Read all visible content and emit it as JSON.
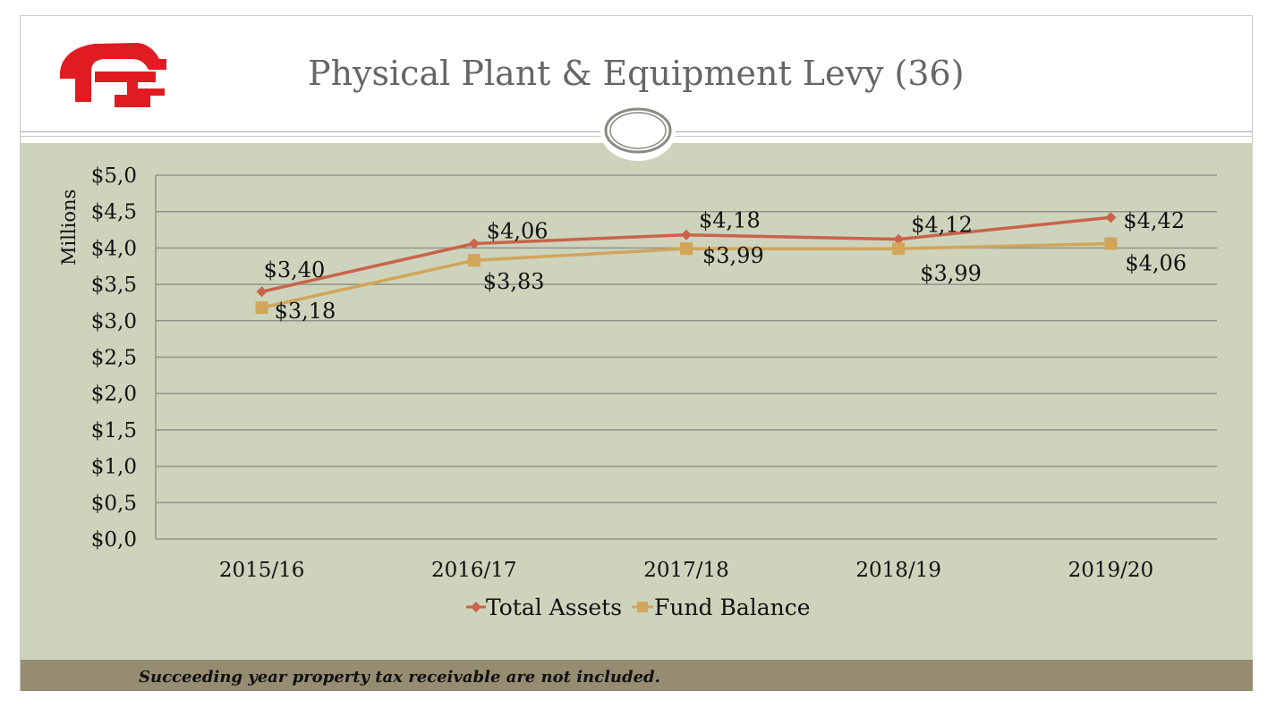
{
  "slide": {
    "title": "Physical Plant & Equipment Levy (36)",
    "footnote": "Succeeding year property tax receivable are not included.",
    "logo_letter": "F"
  },
  "colors": {
    "total_assets": "#c9634a",
    "fund_balance": "#d1a55a",
    "plot_background": "#ced3bc",
    "footer_bar": "#958c72",
    "logo_red": "#e01b22"
  },
  "chart_data": {
    "type": "line",
    "title": "Physical Plant & Equipment Levy (36)",
    "ylabel": "Millions",
    "xlabel": "",
    "ylim": [
      0,
      5
    ],
    "y_ticks": [
      "$0,0",
      "$0,5",
      "$1,0",
      "$1,5",
      "$2,0",
      "$2,5",
      "$3,0",
      "$3,5",
      "$4,0",
      "$4,5",
      "$5,0"
    ],
    "categories": [
      "2015/16",
      "2016/17",
      "2017/18",
      "2018/19",
      "2019/20"
    ],
    "grid": true,
    "legend": "bottom",
    "series": [
      {
        "name": "Total Assets",
        "marker": "diamond",
        "values": [
          3.4,
          4.06,
          4.18,
          4.12,
          4.42
        ],
        "labels": [
          "$3,40",
          "$4,06",
          "$4,18",
          "$4,12",
          "$4,42"
        ]
      },
      {
        "name": "Fund Balance",
        "marker": "square",
        "values": [
          3.18,
          3.83,
          3.99,
          3.99,
          4.06
        ],
        "labels": [
          "$3,18",
          "$3,83",
          "$3,99",
          "$3,99",
          "$4,06"
        ]
      }
    ]
  }
}
